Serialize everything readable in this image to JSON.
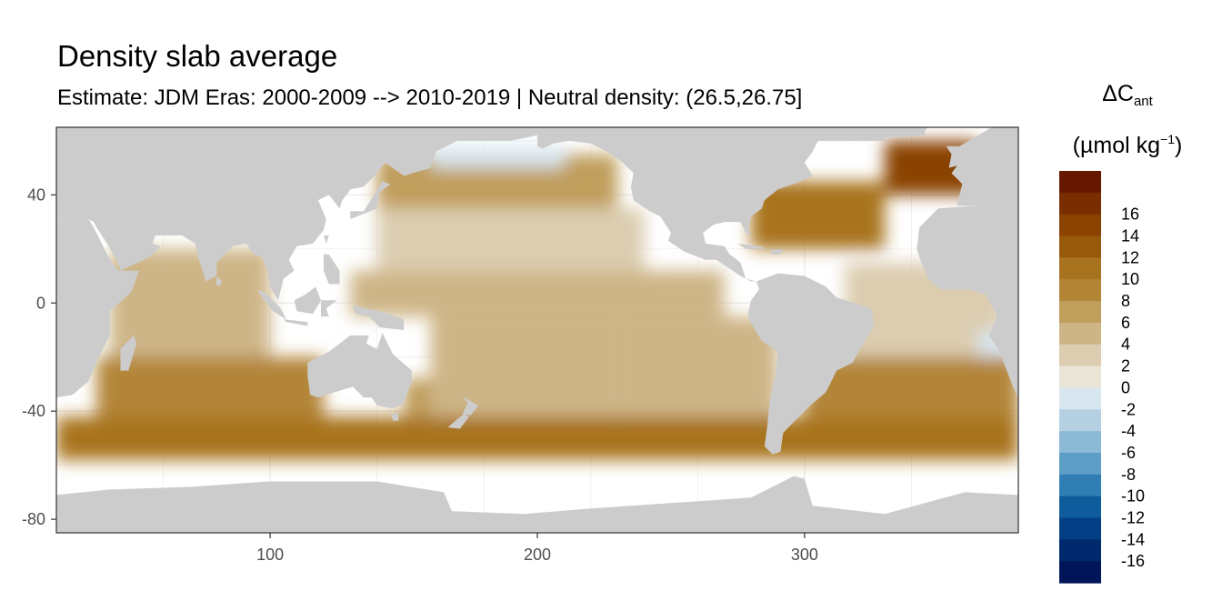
{
  "chart_data": {
    "type": "heatmap",
    "title": "Density slab average",
    "subtitle": "Estimate: JDM Eras: 2000-2009 --> 2010-2019 | Neutral density: (26.5,26.75]",
    "x_axis": {
      "range": [
        20,
        380
      ],
      "ticks": [
        100,
        200,
        300
      ],
      "tick_labels": [
        "100",
        "200",
        "300"
      ]
    },
    "y_axis": {
      "range": [
        -85,
        65
      ],
      "ticks": [
        40,
        0,
        -40,
        -80
      ],
      "tick_labels": [
        "40",
        "0",
        "-40",
        "-80"
      ]
    },
    "legend": {
      "placement": "right",
      "title": {
        "symbol": "ΔC",
        "subscript": "ant",
        "unit_prefix": "(µmol kg",
        "unit_exponent": "−1",
        "unit_suffix": ")"
      },
      "levels": [
        {
          "label": "",
          "color": "#651700"
        },
        {
          "label": "16",
          "color": "#7a2e00"
        },
        {
          "label": "14",
          "color": "#8a4300"
        },
        {
          "label": "12",
          "color": "#975a0b"
        },
        {
          "label": "10",
          "color": "#a8731f"
        },
        {
          "label": "8",
          "color": "#b38537"
        },
        {
          "label": "6",
          "color": "#c09e5c"
        },
        {
          "label": "4",
          "color": "#ceb587"
        },
        {
          "label": "2",
          "color": "#dccdb0"
        },
        {
          "label": "0",
          "color": "#ebe5d8"
        },
        {
          "label": "-2",
          "color": "#d8e6ef"
        },
        {
          "label": "-4",
          "color": "#b4d0e2"
        },
        {
          "label": "-6",
          "color": "#8cbad6"
        },
        {
          "label": "-8",
          "color": "#5d9ec6"
        },
        {
          "label": "-10",
          "color": "#317eb4"
        },
        {
          "label": "-12",
          "color": "#0e5c9c"
        },
        {
          "label": "-14",
          "color": "#023f84"
        },
        {
          "label": "-16",
          "color": "#012a6e"
        },
        {
          "label": "",
          "color": "#001659"
        }
      ]
    },
    "colors": {
      "land": "#cccccc",
      "ocean_no_data": "#ffffff",
      "grid": "#ebebeb",
      "frame": "#333333"
    },
    "regions": [
      {
        "name": "southern-ocean-band",
        "lon": [
          20,
          380
        ],
        "lat": [
          -58,
          -42
        ],
        "value": 9
      },
      {
        "name": "south-indian-ocean",
        "lon": [
          35,
          120
        ],
        "lat": [
          -42,
          -20
        ],
        "value": 7
      },
      {
        "name": "north-indian-ocean",
        "lon": [
          40,
          100
        ],
        "lat": [
          -20,
          20
        ],
        "value": 4
      },
      {
        "name": "tasman-sea",
        "lon": [
          150,
          175
        ],
        "lat": [
          -42,
          -28
        ],
        "value": 5
      },
      {
        "name": "south-pacific-west",
        "lon": [
          160,
          230
        ],
        "lat": [
          -42,
          -5
        ],
        "value": 3
      },
      {
        "name": "south-pacific-east",
        "lon": [
          230,
          290
        ],
        "lat": [
          -42,
          -5
        ],
        "value": 4
      },
      {
        "name": "equatorial-pacific",
        "lon": [
          130,
          270
        ],
        "lat": [
          -5,
          12
        ],
        "value": 3
      },
      {
        "name": "north-pacific-subtropical",
        "lon": [
          140,
          240
        ],
        "lat": [
          12,
          35
        ],
        "value": 2
      },
      {
        "name": "north-pacific-subpolar",
        "lon": [
          140,
          230
        ],
        "lat": [
          35,
          55
        ],
        "value": 5
      },
      {
        "name": "bering-gulf-of-alaska",
        "lon": [
          160,
          210
        ],
        "lat": [
          50,
          58
        ],
        "value": -2
      },
      {
        "name": "north-atlantic-west",
        "lon": [
          280,
          330
        ],
        "lat": [
          20,
          45
        ],
        "value": 9
      },
      {
        "name": "north-atlantic-subpolar",
        "lon": [
          330,
          365
        ],
        "lat": [
          40,
          60
        ],
        "value": 13
      },
      {
        "name": "tropical-atlantic",
        "lon": [
          315,
          375
        ],
        "lat": [
          -20,
          15
        ],
        "value": 1
      },
      {
        "name": "benguela-upwelling",
        "lon": [
          365,
          375
        ],
        "lat": [
          -25,
          -10
        ],
        "value": -2
      },
      {
        "name": "south-atlantic",
        "lon": [
          300,
          380
        ],
        "lat": [
          -42,
          -20
        ],
        "value": 8
      }
    ]
  }
}
